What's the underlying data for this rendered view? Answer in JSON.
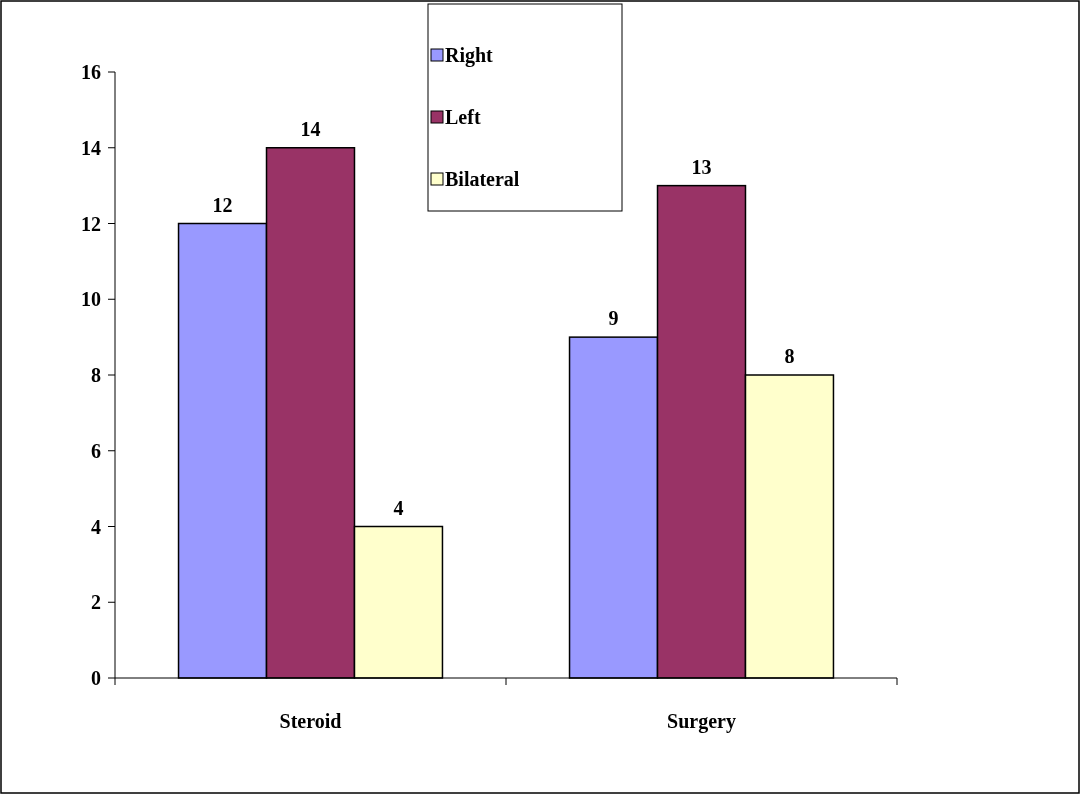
{
  "chart_data": {
    "type": "bar",
    "categories": [
      "Steroid",
      "Surgery"
    ],
    "series": [
      {
        "name": "Right",
        "color": "#9999ff",
        "values": [
          12,
          9
        ]
      },
      {
        "name": "Left",
        "color": "#993366",
        "values": [
          14,
          13
        ]
      },
      {
        "name": "Bilateral",
        "color": "#ffffcc",
        "values": [
          4,
          8
        ]
      }
    ],
    "ylim": [
      0,
      16
    ],
    "yticks": [
      0,
      2,
      4,
      6,
      8,
      10,
      12,
      14,
      16
    ],
    "data_labels": true,
    "legend": "top",
    "grid": false
  }
}
